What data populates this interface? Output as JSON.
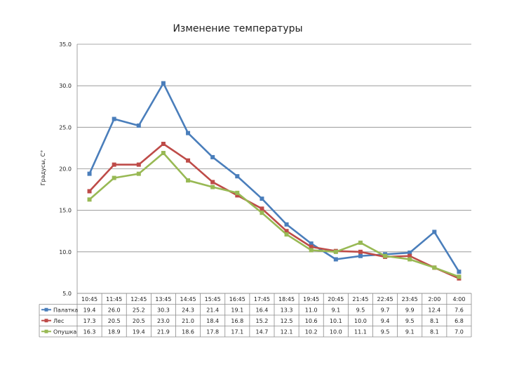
{
  "chart_data": {
    "type": "line",
    "title": "Изменение температуры",
    "ylabel": "Градусы, С°",
    "xlabel": "",
    "ylim": [
      5.0,
      35.0
    ],
    "yticks": [
      "5.0",
      "10.0",
      "15.0",
      "20.0",
      "25.0",
      "30.0",
      "35.0"
    ],
    "grid": true,
    "legend_placement": "data-table-left",
    "categories": [
      "10:45",
      "11:45",
      "12:45",
      "13:45",
      "14:45",
      "15:45",
      "16:45",
      "17:45",
      "18:45",
      "19:45",
      "20:45",
      "21:45",
      "22:45",
      "23:45",
      "2:00",
      "4:00"
    ],
    "series": [
      {
        "name": "Палатка",
        "color": "#4a7ebb",
        "values": [
          19.4,
          26.0,
          25.2,
          30.3,
          24.3,
          21.4,
          19.1,
          16.4,
          13.3,
          11.0,
          9.1,
          9.5,
          9.7,
          9.9,
          12.4,
          7.6
        ],
        "labels": [
          "19.4",
          "26.0",
          "25.2",
          "30.3",
          "24.3",
          "21.4",
          "19.1",
          "16.4",
          "13.3",
          "11.0",
          "9.1",
          "9.5",
          "9.7",
          "9.9",
          "12.4",
          "7.6"
        ]
      },
      {
        "name": "Лес",
        "color": "#be4b48",
        "values": [
          17.3,
          20.5,
          20.5,
          23.0,
          21.0,
          18.4,
          16.8,
          15.2,
          12.5,
          10.6,
          10.1,
          10.0,
          9.4,
          9.5,
          8.1,
          6.8
        ],
        "labels": [
          "17.3",
          "20.5",
          "20.5",
          "23.0",
          "21.0",
          "18.4",
          "16.8",
          "15.2",
          "12.5",
          "10.6",
          "10.1",
          "10.0",
          "9.4",
          "9.5",
          "8.1",
          "6.8"
        ]
      },
      {
        "name": "Опушка",
        "color": "#98b954",
        "values": [
          16.3,
          18.9,
          19.4,
          21.9,
          18.6,
          17.8,
          17.1,
          14.7,
          12.1,
          10.2,
          10.0,
          11.1,
          9.5,
          9.1,
          8.1,
          7.0
        ],
        "labels": [
          "16.3",
          "18.9",
          "19.4",
          "21.9",
          "18.6",
          "17.8",
          "17.1",
          "14.7",
          "12.1",
          "10.2",
          "10.0",
          "11.1",
          "9.5",
          "9.1",
          "8.1",
          "7.0"
        ]
      }
    ]
  }
}
